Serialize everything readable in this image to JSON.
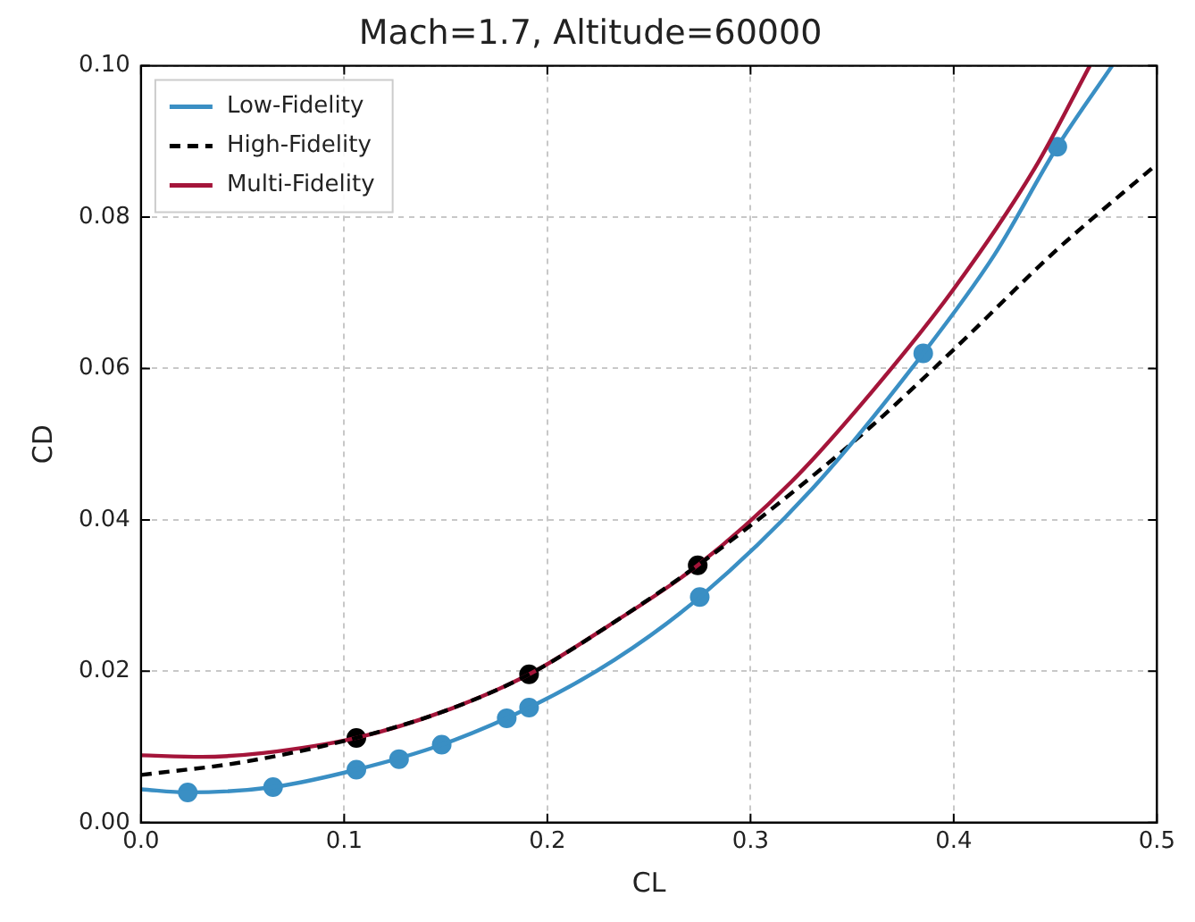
{
  "chart_data": {
    "type": "line",
    "title": "Mach=1.7, Altitude=60000",
    "xlabel": "CL",
    "ylabel": "CD",
    "xlim": [
      0,
      0.5
    ],
    "ylim": [
      0,
      0.1
    ],
    "xticks": [
      {
        "value": 0,
        "label": "0.0"
      },
      0.1,
      0.2,
      0.3,
      0.4,
      0.5
    ],
    "yticks": [
      {
        "value": 0,
        "label": "0.00"
      },
      0.02,
      0.04,
      0.06,
      0.08,
      {
        "value": 0.1,
        "label": "0.10"
      }
    ],
    "grid": true,
    "legend": "top left",
    "series": [
      {
        "name": "Low-Fidelity",
        "color": "#3a8fc4",
        "line_style": "solid",
        "marker": "none",
        "x": [
          0,
          0.023,
          0.065,
          0.106,
          0.148,
          0.191,
          0.233,
          0.275,
          0.33,
          0.385,
          0.42,
          0.451,
          0.478
        ],
        "values": [
          0.0044,
          0.004,
          0.0047,
          0.007,
          0.0103,
          0.0152,
          0.0215,
          0.0298,
          0.044,
          0.062,
          0.075,
          0.0893,
          0.1
        ]
      },
      {
        "name": "High-Fidelity",
        "color": "#000000",
        "line_style": "dashed",
        "marker": "none",
        "x": [
          0,
          0.05,
          0.106,
          0.15,
          0.191,
          0.23,
          0.274,
          0.32,
          0.36,
          0.4,
          0.45,
          0.5
        ],
        "values": [
          0.0063,
          0.008,
          0.0112,
          0.0148,
          0.0196,
          0.026,
          0.034,
          0.0435,
          0.0525,
          0.0625,
          0.0755,
          0.087
        ]
      },
      {
        "name": "Multi-Fidelity",
        "color": "#a4153a",
        "line_style": "solid",
        "marker": "none",
        "x": [
          0,
          0.03,
          0.06,
          0.106,
          0.15,
          0.191,
          0.23,
          0.274,
          0.32,
          0.36,
          0.4,
          0.44,
          0.467
        ],
        "values": [
          0.0089,
          0.0087,
          0.0092,
          0.0112,
          0.0148,
          0.0196,
          0.026,
          0.034,
          0.045,
          0.057,
          0.0705,
          0.0865,
          0.1
        ]
      },
      {
        "type": "scatter",
        "color": "#3a8fc4",
        "marker": "circle",
        "x": [
          0.023,
          0.065,
          0.106,
          0.127,
          0.148,
          0.18,
          0.191,
          0.275,
          0.385,
          0.451
        ],
        "values": [
          0.004,
          0.0047,
          0.007,
          0.0084,
          0.0103,
          0.0138,
          0.0152,
          0.0298,
          0.062,
          0.0893
        ]
      },
      {
        "type": "scatter",
        "color": "#000000",
        "marker": "circle",
        "x": [
          0.106,
          0.191,
          0.274
        ],
        "values": [
          0.0112,
          0.0196,
          0.034
        ]
      }
    ]
  }
}
